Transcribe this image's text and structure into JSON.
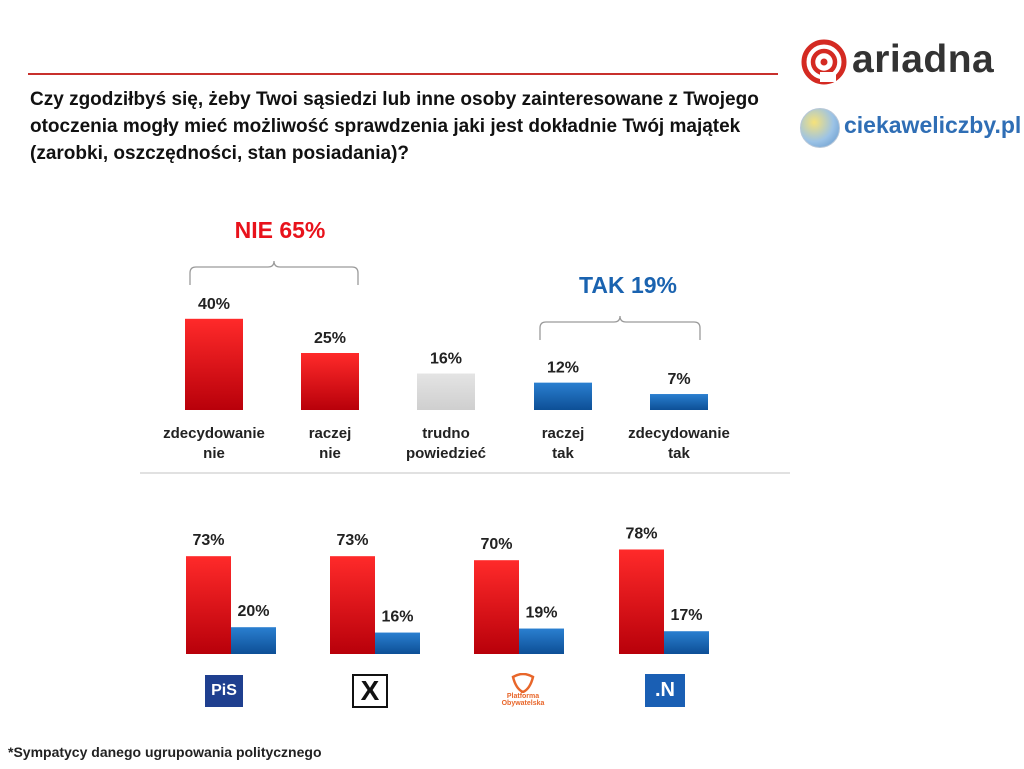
{
  "header": {
    "question": "Czy zgodziłbyś się, żeby Twoi sąsiedzi lub inne osoby zainteresowane z Twojego otoczenia mogły mieć możliwość sprawdzenia jaki jest dokładnie Twój majątek (zarobki, oszczędności, stan posiadania)?",
    "brand": "ariadna",
    "site": "ciekaweliczby.pl"
  },
  "colors": {
    "red": "#e8121b",
    "blue": "#1a63b0",
    "gray": "#d9d9d9",
    "accent": "#c8302c"
  },
  "chart_data": [
    {
      "type": "bar",
      "categories": [
        "zdecydowanie nie",
        "raczej nie",
        "trudno powiedzieć",
        "raczej tak",
        "zdecydowanie tak"
      ],
      "values": [
        40,
        25,
        16,
        12,
        7
      ],
      "value_labels": [
        "40%",
        "25%",
        "16%",
        "12%",
        "7%"
      ],
      "bar_colors": [
        "red",
        "red",
        "gray",
        "blue",
        "blue"
      ],
      "annotations": [
        {
          "text": "NIE 65%",
          "spans": [
            "zdecydowanie nie",
            "raczej nie"
          ],
          "color": "red"
        },
        {
          "text": "TAK 19%",
          "spans": [
            "raczej tak",
            "zdecydowanie tak"
          ],
          "color": "blue"
        }
      ]
    },
    {
      "type": "bar",
      "categories": [
        "PiS",
        "Kukiz'15",
        "Platforma Obywatelska",
        ".N"
      ],
      "series": [
        {
          "values": [
            73,
            73,
            70,
            78
          ],
          "labels": [
            "73%",
            "73%",
            "70%",
            "78%"
          ],
          "color": "red"
        },
        {
          "values": [
            20,
            16,
            19,
            17
          ],
          "labels": [
            "20%",
            "16%",
            "19%",
            "17%"
          ],
          "color": "blue"
        }
      ],
      "logos": [
        {
          "icon": "pis-logo",
          "text": "PiS"
        },
        {
          "icon": "kukiz-logo",
          "text": "X"
        },
        {
          "icon": "po-logo",
          "text": "Platforma Obywatelska"
        },
        {
          "icon": "nowoczesna-logo",
          "text": ".N"
        }
      ]
    }
  ],
  "footnote": "*Sympatycy danego ugrupowania politycznego"
}
